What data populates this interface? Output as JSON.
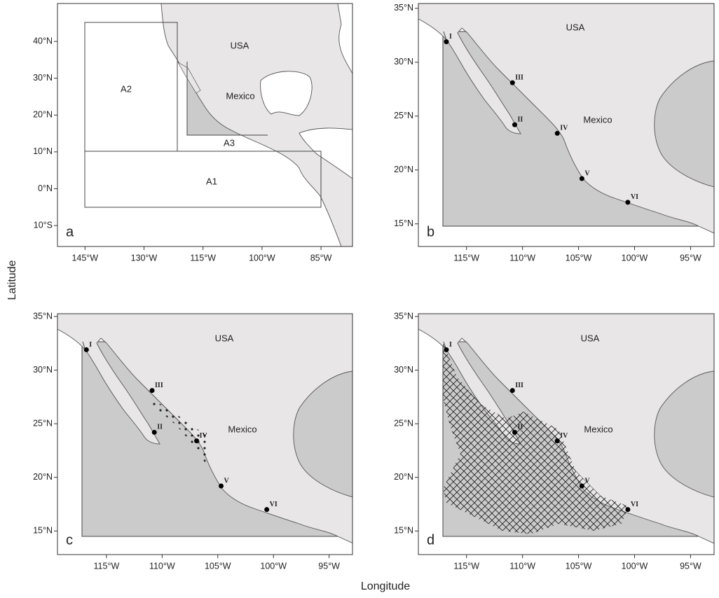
{
  "axis_labels": {
    "x": "Longitude",
    "y": "Latitude"
  },
  "panels": [
    {
      "letter": "a",
      "xlim": [
        -152,
        -77
      ],
      "ylim": [
        -15.7,
        50.3
      ],
      "xticks": [
        {
          "value": -145,
          "label": "145°W"
        },
        {
          "value": -130,
          "label": "130°W"
        },
        {
          "value": -115,
          "label": "115°W"
        },
        {
          "value": -100,
          "label": "100°W"
        },
        {
          "value": -85,
          "label": "85°W"
        }
      ],
      "yticks": [
        {
          "value": -10,
          "label": "10°S"
        },
        {
          "value": 0,
          "label": "0°N"
        },
        {
          "value": 10,
          "label": "10°N"
        },
        {
          "value": 20,
          "label": "20°N"
        },
        {
          "value": 30,
          "label": "30°N"
        },
        {
          "value": 40,
          "label": "40°N"
        }
      ],
      "countries": [
        "USA",
        "Mexico"
      ],
      "regions": [
        "A1",
        "A2",
        "A3"
      ],
      "stations": []
    },
    {
      "letter": "b",
      "xlim": [
        -119.3,
        -92.9
      ],
      "ylim": [
        12.9,
        35.45
      ],
      "xticks": [
        {
          "value": -115,
          "label": "115°W"
        },
        {
          "value": -110,
          "label": "110°W"
        },
        {
          "value": -105,
          "label": "105°W"
        },
        {
          "value": -100,
          "label": "100°W"
        },
        {
          "value": -95,
          "label": "95°W"
        }
      ],
      "yticks": [
        {
          "value": 15,
          "label": "15°N"
        },
        {
          "value": 20,
          "label": "20°N"
        },
        {
          "value": 25,
          "label": "25°N"
        },
        {
          "value": 30,
          "label": "30°N"
        },
        {
          "value": 35,
          "label": "35°N"
        }
      ],
      "countries": [
        "USA",
        "Mexico"
      ],
      "regions": [],
      "stations": [
        {
          "label": "I",
          "lon": -116.8,
          "lat": 31.9
        },
        {
          "label": "II",
          "lon": -110.7,
          "lat": 24.2
        },
        {
          "label": "III",
          "lon": -110.9,
          "lat": 28.1
        },
        {
          "label": "IV",
          "lon": -106.9,
          "lat": 23.4
        },
        {
          "label": "V",
          "lon": -104.7,
          "lat": 19.2
        },
        {
          "label": "VI",
          "lon": -100.6,
          "lat": 17.0
        }
      ]
    },
    {
      "letter": "c",
      "xlim": [
        -119.4,
        -92.9
      ],
      "ylim": [
        12.8,
        35.26
      ],
      "xticks": [
        {
          "value": -115,
          "label": "115°W"
        },
        {
          "value": -110,
          "label": "110°W"
        },
        {
          "value": -105,
          "label": "105°W"
        },
        {
          "value": -100,
          "label": "100°W"
        },
        {
          "value": -95,
          "label": "95°W"
        }
      ],
      "yticks": [
        {
          "value": 15,
          "label": "15°N"
        },
        {
          "value": 20,
          "label": "20°N"
        },
        {
          "value": 25,
          "label": "25°N"
        },
        {
          "value": 30,
          "label": "30°N"
        },
        {
          "value": 35,
          "label": "35°N"
        }
      ],
      "countries": [
        "USA",
        "Mexico"
      ],
      "regions": [],
      "stations": [
        {
          "label": "I",
          "lon": -116.8,
          "lat": 31.9
        },
        {
          "label": "II",
          "lon": -110.7,
          "lat": 24.2
        },
        {
          "label": "III",
          "lon": -110.9,
          "lat": 28.1
        },
        {
          "label": "IV",
          "lon": -106.9,
          "lat": 23.4
        },
        {
          "label": "V",
          "lon": -104.7,
          "lat": 19.2
        },
        {
          "label": "VI",
          "lon": -100.6,
          "lat": 17.0
        }
      ]
    },
    {
      "letter": "d",
      "xlim": [
        -119.3,
        -92.9
      ],
      "ylim": [
        12.8,
        35.26
      ],
      "xticks": [
        {
          "value": -115,
          "label": "115°W"
        },
        {
          "value": -110,
          "label": "110°W"
        },
        {
          "value": -105,
          "label": "105°W"
        },
        {
          "value": -100,
          "label": "100°W"
        },
        {
          "value": -95,
          "label": "95°W"
        }
      ],
      "yticks": [
        {
          "value": 15,
          "label": "15°N"
        },
        {
          "value": 20,
          "label": "20°N"
        },
        {
          "value": 25,
          "label": "25°N"
        },
        {
          "value": 30,
          "label": "30°N"
        },
        {
          "value": 35,
          "label": "35°N"
        }
      ],
      "countries": [
        "USA",
        "Mexico"
      ],
      "regions": [],
      "stations": [
        {
          "label": "I",
          "lon": -116.8,
          "lat": 31.9
        },
        {
          "label": "II",
          "lon": -110.7,
          "lat": 24.2
        },
        {
          "label": "III",
          "lon": -110.9,
          "lat": 28.1
        },
        {
          "label": "IV",
          "lon": -106.9,
          "lat": 23.4
        },
        {
          "label": "V",
          "lon": -104.7,
          "lat": 19.2
        },
        {
          "label": "VI",
          "lon": -100.6,
          "lat": 17.0
        }
      ]
    }
  ]
}
